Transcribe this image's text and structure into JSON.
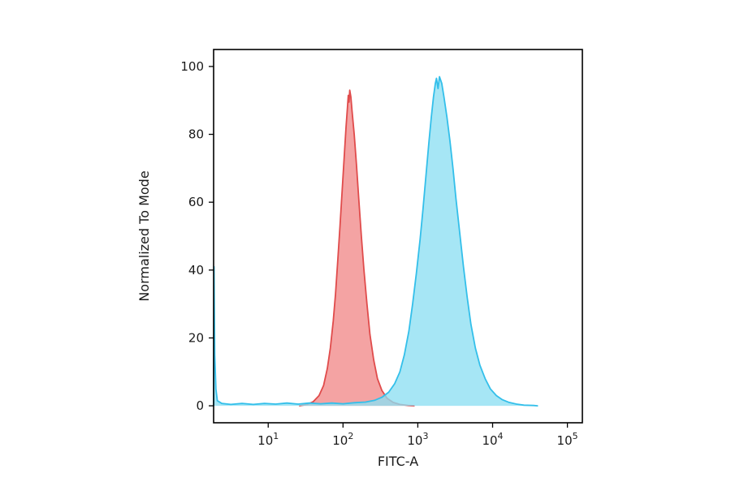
{
  "figure": {
    "background": "#ffffff",
    "border_color": "#000000",
    "text_color": "#1a1a1a"
  },
  "chart_data": {
    "type": "area",
    "subtype": "flow-cytometry-histogram",
    "title": "",
    "xlabel": "FITC-A",
    "ylabel": "Normalized To Mode",
    "x_scale": "log10",
    "x_range_log10": [
      0.27,
      5.2
    ],
    "x_tick_exponents": [
      1,
      2,
      3,
      4,
      5
    ],
    "x_tick_base": "10",
    "y_range": [
      -5,
      105
    ],
    "y_ticks": [
      0,
      20,
      40,
      60,
      80,
      100
    ],
    "grid": false,
    "legend": "none",
    "series": [
      {
        "name": "red-population",
        "stroke": "#e04b4b",
        "fill": "#f08080",
        "fill_opacity": 0.72,
        "stroke_width": 1.8,
        "peak_log10x": 2.09,
        "peak_value": 93,
        "points": [
          [
            1.42,
            0
          ],
          [
            1.52,
            0.4
          ],
          [
            1.6,
            1.2
          ],
          [
            1.68,
            3
          ],
          [
            1.74,
            6
          ],
          [
            1.79,
            11
          ],
          [
            1.83,
            17
          ],
          [
            1.87,
            25
          ],
          [
            1.9,
            33
          ],
          [
            1.93,
            43
          ],
          [
            1.96,
            53
          ],
          [
            1.99,
            64
          ],
          [
            2.02,
            75
          ],
          [
            2.04,
            82
          ],
          [
            2.06,
            88
          ],
          [
            2.07,
            91.5
          ],
          [
            2.08,
            89.5
          ],
          [
            2.09,
            93
          ],
          [
            2.105,
            91
          ],
          [
            2.12,
            87
          ],
          [
            2.15,
            80
          ],
          [
            2.18,
            71
          ],
          [
            2.21,
            61
          ],
          [
            2.245,
            50
          ],
          [
            2.28,
            40
          ],
          [
            2.32,
            30
          ],
          [
            2.36,
            21
          ],
          [
            2.41,
            13.5
          ],
          [
            2.46,
            8
          ],
          [
            2.52,
            4.5
          ],
          [
            2.59,
            2.2
          ],
          [
            2.67,
            1
          ],
          [
            2.76,
            0.4
          ],
          [
            2.87,
            0.1
          ],
          [
            2.95,
            0
          ]
        ]
      },
      {
        "name": "cyan-population",
        "stroke": "#33bfea",
        "fill": "#8ddff2",
        "fill_opacity": 0.78,
        "stroke_width": 1.8,
        "peak_log10x": 3.29,
        "peak_value": 97,
        "edge_spike_value": 41,
        "points": [
          [
            0.27,
            0
          ],
          [
            0.275,
            41
          ],
          [
            0.285,
            15
          ],
          [
            0.3,
            5
          ],
          [
            0.32,
            1.5
          ],
          [
            0.38,
            0.7
          ],
          [
            0.5,
            0.4
          ],
          [
            0.65,
            0.7
          ],
          [
            0.8,
            0.4
          ],
          [
            0.95,
            0.7
          ],
          [
            1.1,
            0.5
          ],
          [
            1.25,
            0.8
          ],
          [
            1.4,
            0.5
          ],
          [
            1.55,
            0.8
          ],
          [
            1.7,
            0.6
          ],
          [
            1.85,
            0.8
          ],
          [
            2.0,
            0.6
          ],
          [
            2.15,
            0.9
          ],
          [
            2.3,
            1.1
          ],
          [
            2.42,
            1.6
          ],
          [
            2.52,
            2.5
          ],
          [
            2.61,
            4
          ],
          [
            2.69,
            6.5
          ],
          [
            2.76,
            10
          ],
          [
            2.82,
            15
          ],
          [
            2.88,
            22
          ],
          [
            2.93,
            30
          ],
          [
            2.98,
            39
          ],
          [
            3.03,
            49
          ],
          [
            3.07,
            58
          ],
          [
            3.11,
            68
          ],
          [
            3.15,
            78
          ],
          [
            3.18,
            85
          ],
          [
            3.21,
            91
          ],
          [
            3.235,
            95
          ],
          [
            3.25,
            96.5
          ],
          [
            3.27,
            93.5
          ],
          [
            3.29,
            97
          ],
          [
            3.32,
            95
          ],
          [
            3.35,
            91
          ],
          [
            3.39,
            85
          ],
          [
            3.43,
            78
          ],
          [
            3.47,
            70
          ],
          [
            3.51,
            61
          ],
          [
            3.56,
            51
          ],
          [
            3.61,
            41
          ],
          [
            3.66,
            32
          ],
          [
            3.71,
            24
          ],
          [
            3.77,
            17
          ],
          [
            3.83,
            12
          ],
          [
            3.9,
            8
          ],
          [
            3.97,
            5
          ],
          [
            4.05,
            3
          ],
          [
            4.13,
            1.8
          ],
          [
            4.22,
            1
          ],
          [
            4.32,
            0.5
          ],
          [
            4.42,
            0.2
          ],
          [
            4.55,
            0.1
          ],
          [
            4.6,
            0
          ]
        ]
      }
    ]
  }
}
